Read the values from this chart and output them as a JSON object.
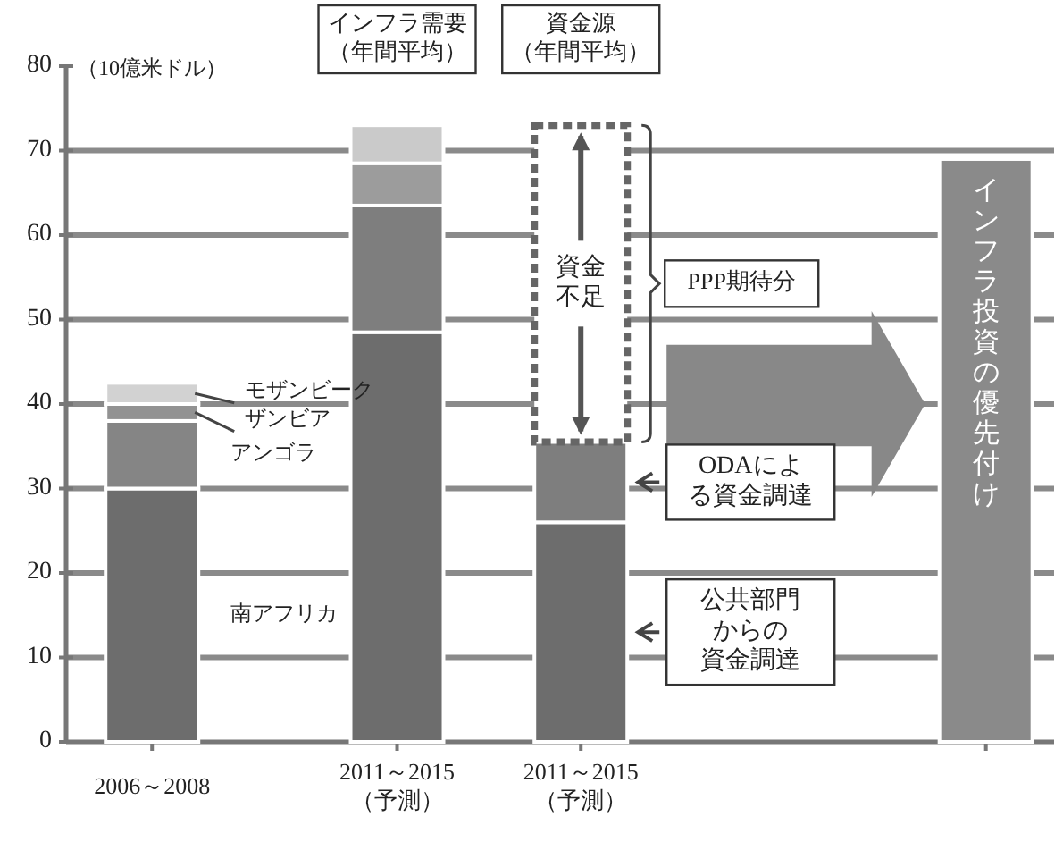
{
  "chart_data": {
    "type": "bar",
    "stacked": true,
    "ylabel": "（10億米ドル）",
    "categories": [
      "2006～2008",
      "2011～2015\n（予測）",
      "2011～2015\n（予測）",
      null
    ],
    "series": [
      {
        "name": "南アフリカ",
        "color": "#6d6d6d",
        "values": [
          30,
          null,
          null,
          null
        ]
      },
      {
        "name": "アンゴラ",
        "color": "#858585",
        "values": [
          8,
          null,
          null,
          null
        ]
      },
      {
        "name": "ザンビア",
        "color": "#929292",
        "values": [
          2,
          null,
          null,
          null
        ]
      },
      {
        "name": "モザンビーク",
        "color": "#d2d2d2",
        "values": [
          2.5,
          null,
          null,
          null
        ]
      },
      {
        "color": "#6d6d6d",
        "values": [
          null,
          48.5,
          null,
          null
        ]
      },
      {
        "color": "#7e7e7e",
        "values": [
          null,
          15,
          null,
          null
        ]
      },
      {
        "color": "#9c9c9c",
        "values": [
          null,
          5,
          null,
          null
        ]
      },
      {
        "color": "#cacaca",
        "values": [
          null,
          4.5,
          null,
          null
        ]
      },
      {
        "name": "公共部門からの資金調達",
        "color": "#6d6d6d",
        "values": [
          null,
          null,
          26,
          null
        ]
      },
      {
        "name": "ODAによる資金調達",
        "color": "#7e7e7e",
        "values": [
          null,
          null,
          9.5,
          null
        ]
      },
      {
        "name": "資金不足",
        "color": "#ffffff",
        "line_style": "dashed",
        "values": [
          null,
          null,
          37.5,
          null
        ]
      },
      {
        "color": "#8a8a8a",
        "values": [
          null,
          null,
          null,
          69
        ]
      }
    ],
    "ylim": [
      0,
      80
    ],
    "yticks": [
      0,
      10,
      20,
      30,
      40,
      50,
      60,
      70,
      80
    ],
    "grid": "y",
    "annotations": [
      "インフラ需要（年間平均）",
      "資金源（年間平均）",
      "PPP期待分",
      "インフラ投資の優先付け"
    ]
  }
}
